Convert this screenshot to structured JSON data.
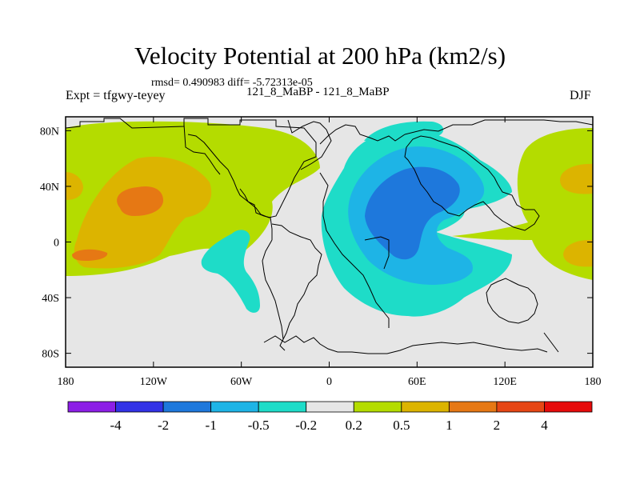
{
  "title": "Velocity Potential at 200 hPa (km2/s)",
  "stats": "rmsd= 0.490983 diff= -5.72313e-05",
  "left_label": "Expt = tfgwy-teyey",
  "center_label": "121_8_MaBP - 121_8_MaBP",
  "right_label": "DJF",
  "map": {
    "projection": "cylindrical equidistant",
    "lon_range": [
      -180,
      180
    ],
    "lat_range": [
      -90,
      90
    ],
    "lon_ticks": [
      {
        "value": -180,
        "label": "180"
      },
      {
        "value": -120,
        "label": "120W"
      },
      {
        "value": -60,
        "label": "60W"
      },
      {
        "value": 0,
        "label": "0"
      },
      {
        "value": 60,
        "label": "60E"
      },
      {
        "value": 120,
        "label": "120E"
      },
      {
        "value": 180,
        "label": "180"
      }
    ],
    "lat_ticks": [
      {
        "value": 80,
        "label": "80N"
      },
      {
        "value": 40,
        "label": "40N"
      },
      {
        "value": 0,
        "label": "0"
      },
      {
        "value": -40,
        "label": "40S"
      },
      {
        "value": -80,
        "label": "80S"
      }
    ],
    "neutral_color": "#e6e6e6"
  },
  "colorbar": {
    "colors": [
      "#8c1ee6",
      "#3232e6",
      "#1e78dc",
      "#1eb4e6",
      "#1edcc8",
      "#e6e6e6",
      "#b4dc00",
      "#dcb400",
      "#e67814",
      "#e64614",
      "#e60a0a"
    ],
    "labels": [
      "-4",
      "-2",
      "-1",
      "-0.5",
      "-0.2",
      "0.2",
      "0.5",
      "1",
      "2",
      "4"
    ]
  },
  "chart_data": {
    "type": "heatmap",
    "title": "Velocity Potential at 200 hPa (km2/s)",
    "variable": "velocity potential",
    "level": "200 hPa",
    "units": "km2/s",
    "season": "DJF",
    "contour_levels": [
      -4,
      -2,
      -1,
      -0.5,
      -0.2,
      0.2,
      0.5,
      1,
      2,
      4
    ],
    "features": [
      {
        "name": "central Pacific positive maximum",
        "lon": -130,
        "lat": 30,
        "value_range": [
          1,
          2
        ]
      },
      {
        "name": "south Pacific positive lobe",
        "lon": -160,
        "lat": -15,
        "value_range": [
          1,
          2
        ]
      },
      {
        "name": "north Pacific / North America positive band",
        "lon": -110,
        "lat": 50,
        "value_range": [
          0.2,
          0.5
        ]
      },
      {
        "name": "dateline positive region",
        "lon": 172,
        "lat": 20,
        "value_range": [
          0.5,
          1
        ]
      },
      {
        "name": "Asian-Indian negative minimum",
        "lon": 50,
        "lat": 20,
        "value_range": [
          -2,
          -1
        ]
      },
      {
        "name": "tropical Atlantic negative lobe",
        "lon": -65,
        "lat": -15,
        "value_range": [
          -0.5,
          -0.2
        ]
      }
    ]
  }
}
